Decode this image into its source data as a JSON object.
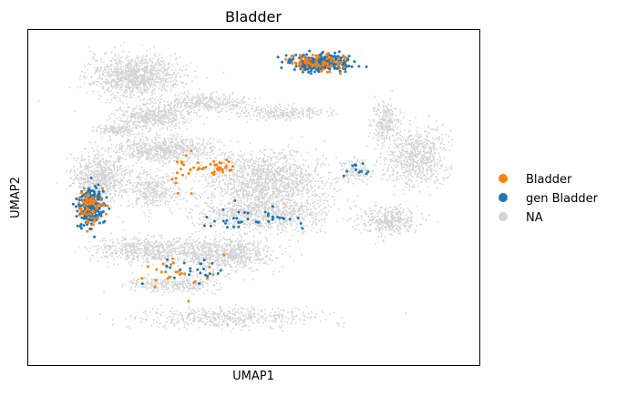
{
  "chart_data": {
    "type": "scatter",
    "title": "Bladder",
    "xlabel": "UMAP1",
    "ylabel": "UMAP2",
    "xticks": [],
    "yticks": [],
    "grid": false,
    "legend_placement": "right-outside",
    "legend": [
      {
        "label": "Bladder",
        "color": "#ff7f0e"
      },
      {
        "label": "gen Bladder",
        "color": "#1f77b4"
      },
      {
        "label": "NA",
        "color": "#d3d3d3"
      }
    ],
    "xlim": [
      0,
      100
    ],
    "ylim": [
      0,
      100
    ],
    "series": [
      {
        "name": "NA",
        "color": "#d3d3d3",
        "clusters": [
          {
            "cx": 24,
            "cy": 86,
            "rx": 10,
            "ry": 6,
            "n": 1100
          },
          {
            "cx": 28,
            "cy": 74,
            "rx": 8,
            "ry": 3.5,
            "n": 500
          },
          {
            "cx": 40,
            "cy": 78,
            "rx": 9,
            "ry": 2.5,
            "n": 350
          },
          {
            "cx": 56,
            "cy": 75,
            "rx": 10,
            "ry": 2,
            "n": 250
          },
          {
            "cx": 30,
            "cy": 64,
            "rx": 11,
            "ry": 4,
            "n": 700
          },
          {
            "cx": 16,
            "cy": 56,
            "rx": 6,
            "ry": 7,
            "n": 700
          },
          {
            "cx": 28,
            "cy": 52,
            "rx": 6,
            "ry": 5,
            "n": 350
          },
          {
            "cx": 53,
            "cy": 55,
            "rx": 13,
            "ry": 8,
            "n": 1400
          },
          {
            "cx": 52,
            "cy": 45,
            "rx": 15,
            "ry": 5,
            "n": 900
          },
          {
            "cx": 44,
            "cy": 33,
            "rx": 10,
            "ry": 5,
            "n": 700
          },
          {
            "cx": 28,
            "cy": 34,
            "rx": 13,
            "ry": 4,
            "n": 700
          },
          {
            "cx": 44,
            "cy": 14,
            "rx": 20,
            "ry": 3,
            "n": 500
          },
          {
            "cx": 32,
            "cy": 24,
            "rx": 10,
            "ry": 2.5,
            "n": 300
          },
          {
            "cx": 86,
            "cy": 62,
            "rx": 7,
            "ry": 9,
            "n": 700
          },
          {
            "cx": 79,
            "cy": 72,
            "rx": 3,
            "ry": 6,
            "n": 250
          },
          {
            "cx": 80,
            "cy": 43,
            "rx": 6,
            "ry": 4,
            "n": 400
          },
          {
            "cx": 73,
            "cy": 58,
            "rx": 3,
            "ry": 3,
            "n": 120
          },
          {
            "cx": 20,
            "cy": 70,
            "rx": 5,
            "ry": 1.5,
            "n": 150
          }
        ]
      },
      {
        "name": "gen Bladder",
        "color": "#1f77b4",
        "clusters": [
          {
            "cx": 14,
            "cy": 47,
            "rx": 3,
            "ry": 5.5,
            "n": 230
          },
          {
            "cx": 65,
            "cy": 90,
            "rx": 6.5,
            "ry": 2.5,
            "n": 300
          },
          {
            "cx": 50,
            "cy": 44,
            "rx": 11,
            "ry": 4,
            "n": 40
          },
          {
            "cx": 36,
            "cy": 28,
            "rx": 7,
            "ry": 4,
            "n": 25
          },
          {
            "cx": 73,
            "cy": 58,
            "rx": 3,
            "ry": 2,
            "n": 12
          }
        ]
      },
      {
        "name": "Bladder",
        "color": "#ff7f0e",
        "clusters": [
          {
            "cx": 14,
            "cy": 47,
            "rx": 3,
            "ry": 5.5,
            "n": 70
          },
          {
            "cx": 65,
            "cy": 90,
            "rx": 6.5,
            "ry": 2.5,
            "n": 80
          },
          {
            "cx": 42,
            "cy": 59,
            "rx": 4,
            "ry": 2,
            "n": 30
          },
          {
            "cx": 35,
            "cy": 57,
            "rx": 3,
            "ry": 6,
            "n": 18
          },
          {
            "cx": 34,
            "cy": 28,
            "rx": 8,
            "ry": 6,
            "n": 25
          }
        ]
      }
    ]
  }
}
